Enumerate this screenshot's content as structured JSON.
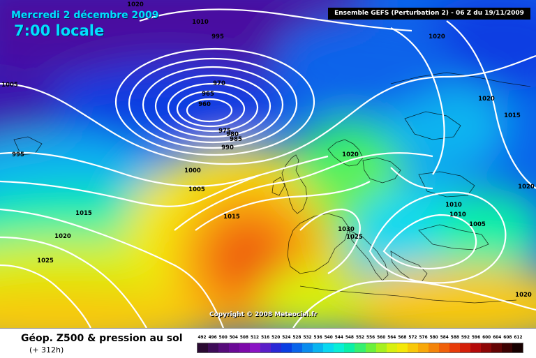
{
  "header": {
    "date": "Mercredi 2 décembre 2009",
    "time": "7:00 locale",
    "model": "Ensemble GEFS (Perturbation 2)  -  06 Z du 19/11/2009",
    "copyright": "Copyright © 2008 Meteociel.fr"
  },
  "footer": {
    "title": "Géop. Z500 & pression au sol",
    "lead": "(+ 312h)"
  },
  "isobar_labels": [
    "1020",
    "1010",
    "995",
    "1020",
    "1005",
    "970",
    "965",
    "960",
    "975",
    "980",
    "985",
    "990",
    "1020",
    "1015",
    "995",
    "1000",
    "1005",
    "1020",
    "1015",
    "1015",
    "1010",
    "1005",
    "1030",
    "1025",
    "1020",
    "1025",
    "1020"
  ],
  "legend": {
    "levels": [
      "492",
      "496",
      "500",
      "504",
      "508",
      "512",
      "516",
      "520",
      "524",
      "528",
      "532",
      "536",
      "540",
      "544",
      "548",
      "552",
      "556",
      "560",
      "564",
      "568",
      "572",
      "576",
      "580",
      "584",
      "588",
      "592",
      "596",
      "600",
      "604",
      "608",
      "612"
    ],
    "colors": [
      "#2a0a32",
      "#3e0c58",
      "#560c7a",
      "#6a0a96",
      "#7d0aaa",
      "#8a14c4",
      "#5a1ec8",
      "#2a28d6",
      "#0a3ee2",
      "#0a64ea",
      "#0a8cee",
      "#0ab4f0",
      "#0ad8f0",
      "#0aeed6",
      "#0af0a8",
      "#36f070",
      "#6cf03c",
      "#a6f020",
      "#d8f010",
      "#f4e80a",
      "#f8c80a",
      "#f8a80a",
      "#f4840a",
      "#f0600a",
      "#e83c0a",
      "#d4200a",
      "#b40a0a",
      "#8c0606",
      "#640404",
      "#3c0202",
      "#160000"
    ]
  }
}
